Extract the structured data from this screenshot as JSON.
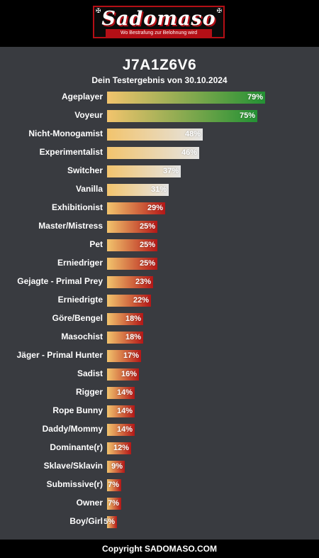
{
  "brand": {
    "logo": "Sadomaso",
    "tagline": "Wo Bestrafung zur Belohnung wird"
  },
  "result": {
    "code": "J7A1Z6V6",
    "subtitle": "Dein Testergebnis von 30.10.2024"
  },
  "colors": {
    "green_start": "#f2c46d",
    "green_end": "#239134",
    "neutral_start": "#f2c46d",
    "neutral_end": "#e4e4e4",
    "red_start": "#f2c46d",
    "red_end": "#b41717"
  },
  "items": [
    {
      "label": "Ageplayer",
      "percent": 79,
      "value": "79%",
      "tone": "green"
    },
    {
      "label": "Voyeur",
      "percent": 75,
      "value": "75%",
      "tone": "green"
    },
    {
      "label": "Nicht-Monogamist",
      "percent": 48,
      "value": "48%",
      "tone": "neutral"
    },
    {
      "label": "Experimentalist",
      "percent": 46,
      "value": "46%",
      "tone": "neutral"
    },
    {
      "label": "Switcher",
      "percent": 37,
      "value": "37%",
      "tone": "neutral"
    },
    {
      "label": "Vanilla",
      "percent": 31,
      "value": "31%",
      "tone": "neutral"
    },
    {
      "label": "Exhibitionist",
      "percent": 29,
      "value": "29%",
      "tone": "red"
    },
    {
      "label": "Master/Mistress",
      "percent": 25,
      "value": "25%",
      "tone": "red"
    },
    {
      "label": "Pet",
      "percent": 25,
      "value": "25%",
      "tone": "red"
    },
    {
      "label": "Erniedriger",
      "percent": 25,
      "value": "25%",
      "tone": "red"
    },
    {
      "label": "Gejagte - Primal Prey",
      "percent": 23,
      "value": "23%",
      "tone": "red"
    },
    {
      "label": "Erniedrigte",
      "percent": 22,
      "value": "22%",
      "tone": "red"
    },
    {
      "label": "Göre/Bengel",
      "percent": 18,
      "value": "18%",
      "tone": "red"
    },
    {
      "label": "Masochist",
      "percent": 18,
      "value": "18%",
      "tone": "red"
    },
    {
      "label": "Jäger - Primal Hunter",
      "percent": 17,
      "value": "17%",
      "tone": "red"
    },
    {
      "label": "Sadist",
      "percent": 16,
      "value": "16%",
      "tone": "red"
    },
    {
      "label": "Rigger",
      "percent": 14,
      "value": "14%",
      "tone": "red"
    },
    {
      "label": "Rope Bunny",
      "percent": 14,
      "value": "14%",
      "tone": "red"
    },
    {
      "label": "Daddy/Mommy",
      "percent": 14,
      "value": "14%",
      "tone": "red"
    },
    {
      "label": "Dominante(r)",
      "percent": 12,
      "value": "12%",
      "tone": "red"
    },
    {
      "label": "Sklave/Sklavin",
      "percent": 9,
      "value": "9%",
      "tone": "red"
    },
    {
      "label": "Submissive(r)",
      "percent": 7,
      "value": "7%",
      "tone": "red"
    },
    {
      "label": "Owner",
      "percent": 7,
      "value": "7%",
      "tone": "red"
    },
    {
      "label": "Boy/Girl",
      "percent": 5,
      "value": "5%",
      "tone": "red"
    }
  ],
  "footer": {
    "text": "Copyright SADOMASO.COM"
  }
}
